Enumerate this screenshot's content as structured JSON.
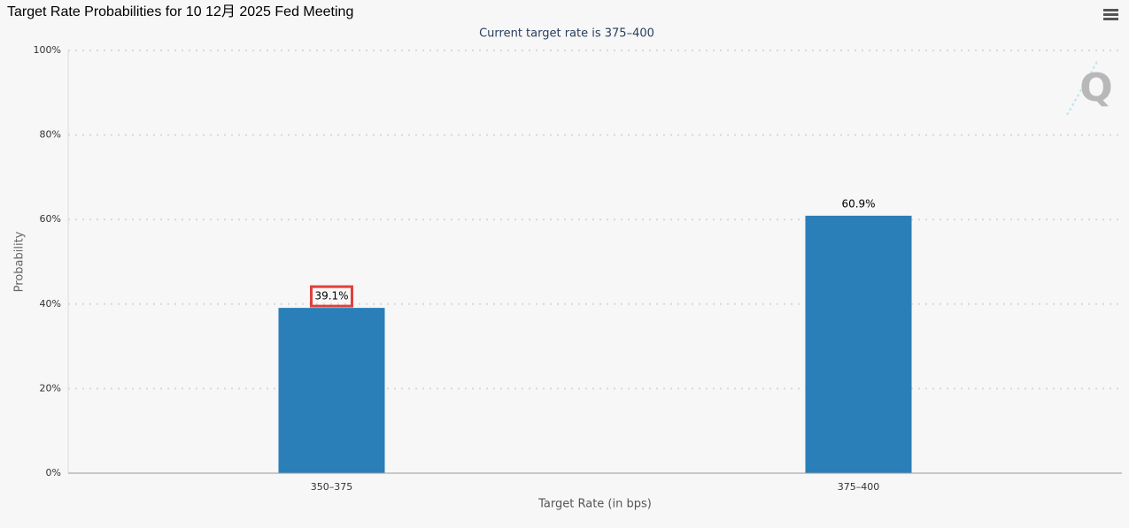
{
  "chart_data": {
    "type": "bar",
    "title": "Target Rate Probabilities for 10 12月 2025 Fed Meeting",
    "subtitle": "Current target rate is 375–400",
    "x_label": "Target Rate (in bps)",
    "y_label": "Probability",
    "categories": [
      "350–375",
      "375–400"
    ],
    "values": [
      39.1,
      60.9
    ],
    "value_labels": [
      "39.1%",
      "60.9%"
    ],
    "color": "#2a7fb8",
    "ylim": [
      0,
      100
    ],
    "yticks": [
      {
        "value": 0,
        "label": "0%"
      },
      {
        "value": 20,
        "label": "20%"
      },
      {
        "value": 40,
        "label": "40%"
      },
      {
        "value": 60,
        "label": "60%"
      },
      {
        "value": 80,
        "label": "80%"
      },
      {
        "value": 100,
        "label": "100%"
      }
    ],
    "grid": true
  }
}
